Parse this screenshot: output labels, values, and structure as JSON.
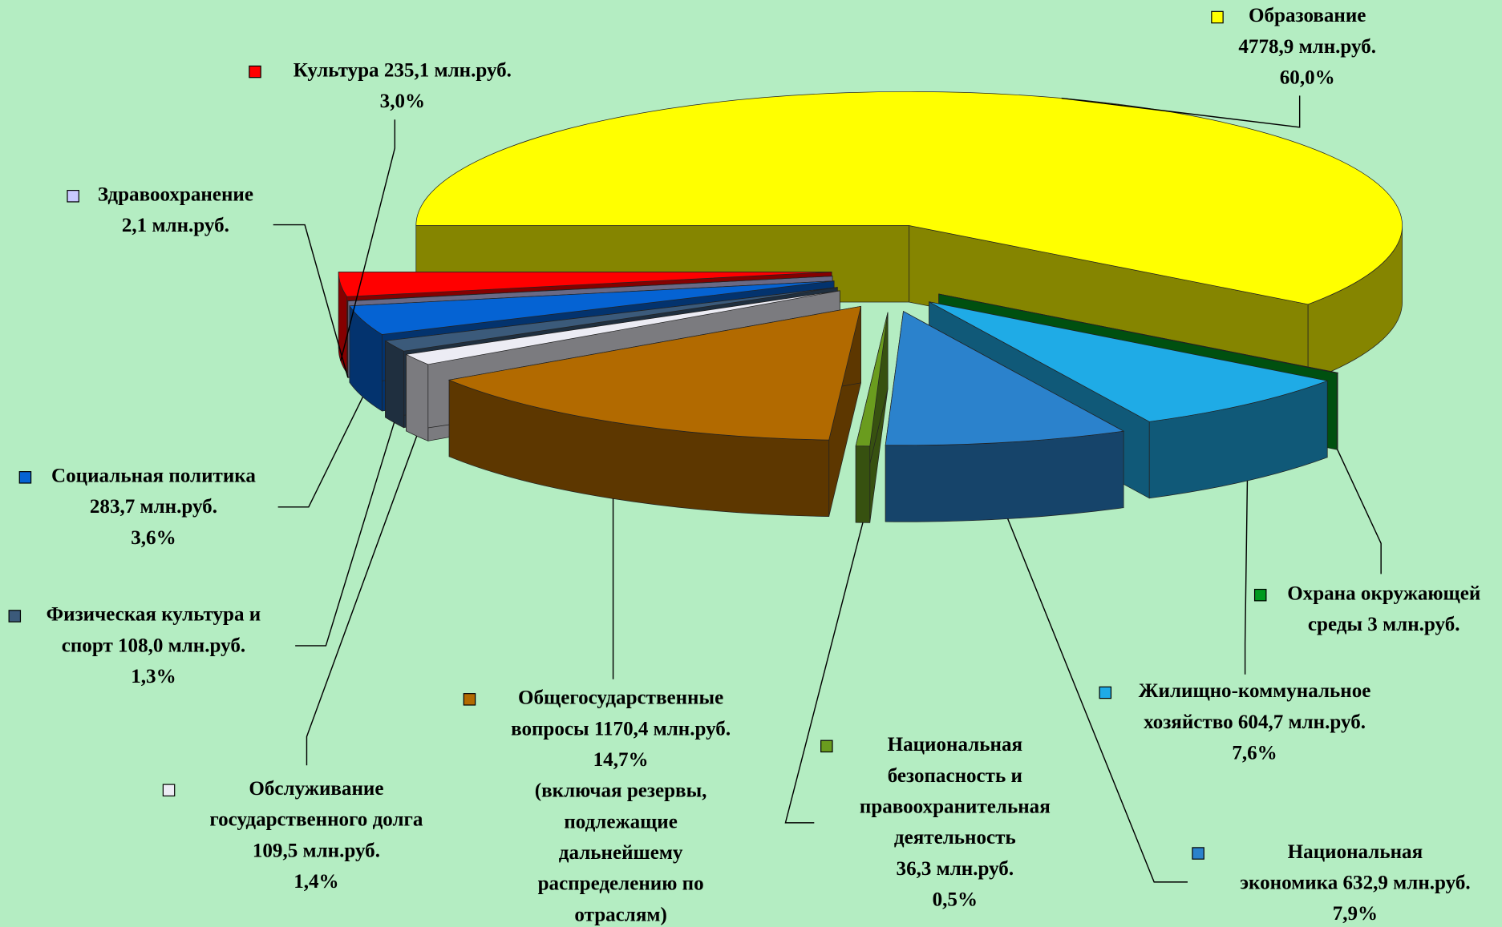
{
  "chart_data": {
    "type": "pie3d",
    "values": [
      4778.9,
      3,
      604.7,
      632.9,
      36.3,
      1170.4,
      109.5,
      108.0,
      283.7,
      2.1,
      235.1
    ],
    "colors": [
      "#ffff00",
      "#009a1e",
      "#1fabe6",
      "#2b82cc",
      "#6a9c1e",
      "#b26a00",
      "#ececf4",
      "#3b5a7a",
      "#0563d3",
      "#c9c9ff",
      "#ff0000"
    ],
    "value_labels": [
      [
        "Образование",
        "4778,9 млн.руб.",
        "60,0%"
      ],
      [
        "Охрана окружающей",
        "среды 3 млн.руб."
      ],
      [
        "Жилищно-коммунальное",
        "хозяйство 604,7 млн.руб.",
        "7,6%"
      ],
      [
        "Национальная",
        "экономика 632,9 млн.руб.",
        "7,9%"
      ],
      [
        "Национальная",
        "безопасность и",
        "правоохранительная",
        "деятельность",
        "36,3 млн.руб.",
        "0,5%"
      ],
      [
        "Общегосударственные",
        "вопросы 1170,4 млн.руб.",
        "14,7%",
        "(включая резервы,",
        "подлежащие",
        "дальнейшему",
        "распределению по",
        "отраслям)"
      ],
      [
        "Обслуживание",
        "государственного долга",
        "109,5 млн.руб.",
        "1,4%"
      ],
      [
        "Физическая культура и",
        "спорт 108,0 млн.руб.",
        "1,3%"
      ],
      [
        "Социальная политика",
        "283,7 млн.руб.",
        "3,6%"
      ],
      [
        "Здравоохранение",
        "2,1 млн.руб."
      ],
      [
        "Культура 235,1 млн.руб.",
        "3,0%"
      ]
    ]
  }
}
